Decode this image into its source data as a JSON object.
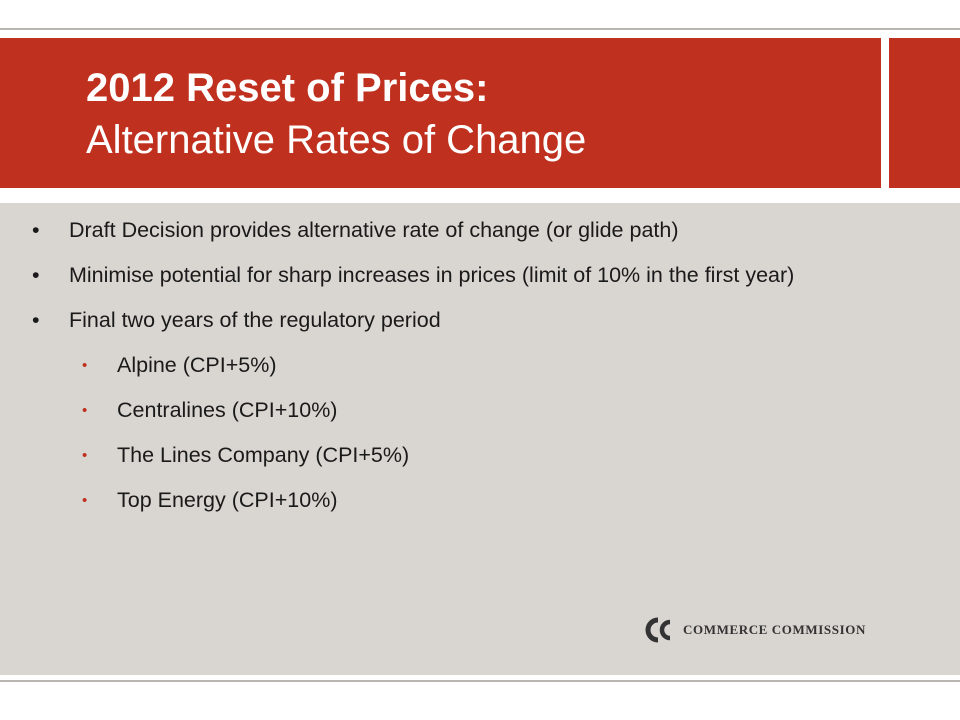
{
  "slide": {
    "title_bold": "2012 Reset of Prices:",
    "title_regular": "Alternative Rates of Change",
    "bullets": [
      {
        "level": 1,
        "text": "Draft Decision provides alternative rate of change (or glide path)"
      },
      {
        "level": 1,
        "text": "Minimise potential for sharp increases in prices (limit of 10% in the first year)"
      },
      {
        "level": 1,
        "text": "Final two years of the regulatory period"
      },
      {
        "level": 2,
        "text": "Alpine (CPI+5%)"
      },
      {
        "level": 2,
        "text": "Centralines (CPI+10%)"
      },
      {
        "level": 2,
        "text": "The Lines Company (CPI+5%)"
      },
      {
        "level": 2,
        "text": "Top Energy (CPI+10%)"
      }
    ],
    "logo": {
      "icon": "commerce-commission-logo-icon",
      "text": "COMMERCE COMMISSION"
    }
  },
  "colors": {
    "banner_red": "#c0301e",
    "panel_grey": "#d9d5d0",
    "rule_grey": "#b9b5b0",
    "text": "#1a1a1a"
  }
}
